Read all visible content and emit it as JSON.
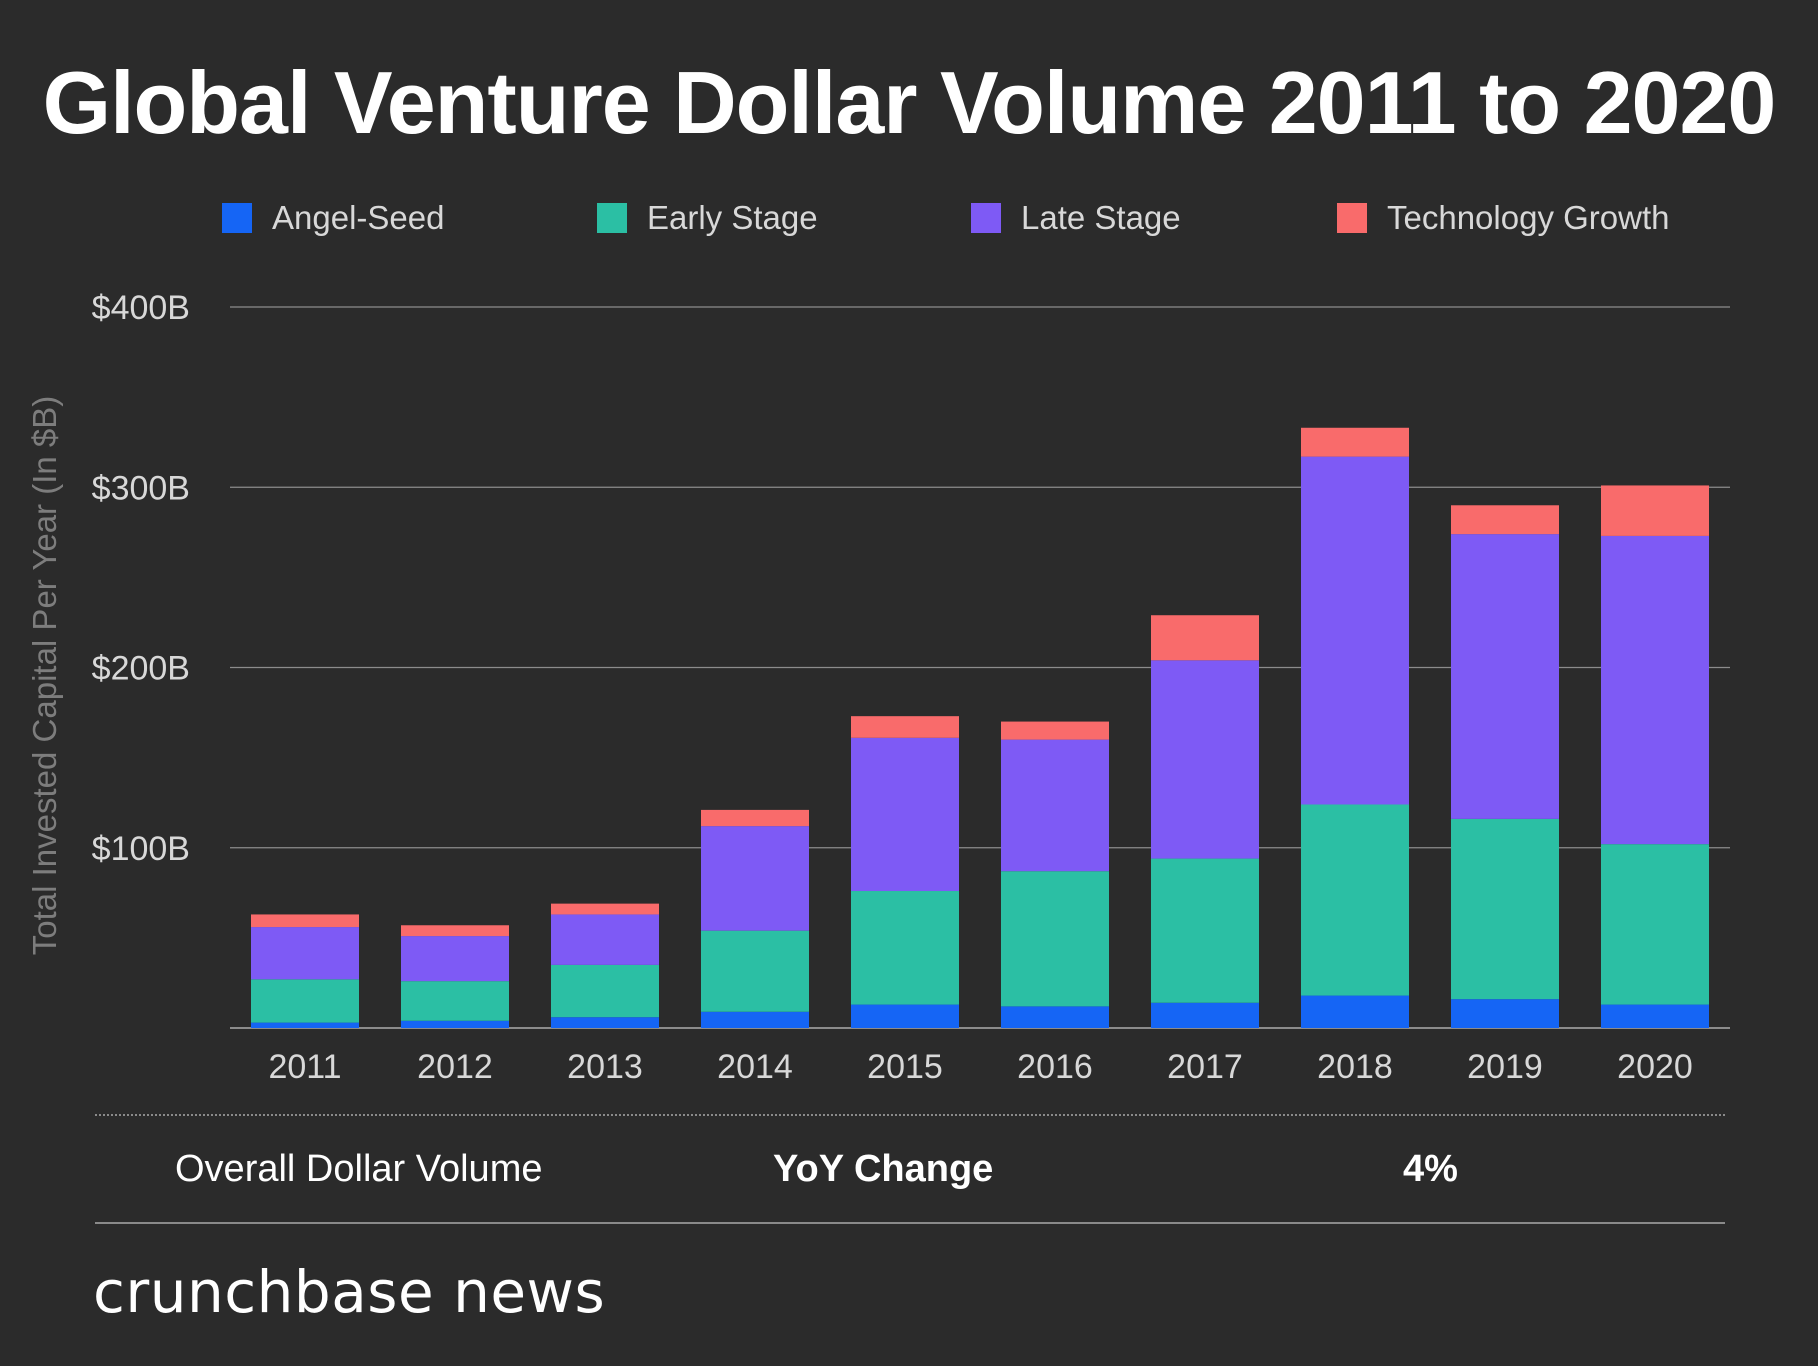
{
  "chart_data": {
    "type": "bar",
    "stacked": true,
    "title": "Global Venture Dollar Volume 2011 to 2020",
    "ylabel": "Total Invested Capital Per Year (In $B)",
    "xlabel": "",
    "ylim": [
      0,
      400
    ],
    "yticks": [
      100,
      200,
      300,
      400
    ],
    "ytick_labels": [
      "$100B",
      "$200B",
      "$300B",
      "$400B"
    ],
    "grid": true,
    "legend_position": "top",
    "categories": [
      "2011",
      "2012",
      "2013",
      "2014",
      "2015",
      "2016",
      "2017",
      "2018",
      "2019",
      "2020"
    ],
    "series": [
      {
        "name": "Angel-Seed",
        "color": "#1565f5",
        "values": [
          3,
          4,
          6,
          9,
          13,
          12,
          14,
          18,
          16,
          13
        ]
      },
      {
        "name": "Early Stage",
        "color": "#2bbfa4",
        "values": [
          24,
          22,
          29,
          45,
          63,
          75,
          80,
          106,
          100,
          89
        ]
      },
      {
        "name": "Late Stage",
        "color": "#7e5af5",
        "values": [
          29,
          25,
          28,
          58,
          85,
          73,
          110,
          193,
          158,
          171
        ]
      },
      {
        "name": "Technology Growth",
        "color": "#f96b6b",
        "values": [
          7,
          6,
          6,
          9,
          12,
          10,
          25,
          16,
          16,
          28
        ]
      }
    ]
  },
  "summary": {
    "label": "Overall Dollar Volume",
    "yoy_label": "YoY Change",
    "yoy_value": "4%"
  },
  "brand": "crunchbase news",
  "colors": {
    "background": "#2b2b2b",
    "gridline": "#8c8c8c",
    "tick_text": "#d8d8d8",
    "ylabel_text": "#7d7d7d"
  }
}
